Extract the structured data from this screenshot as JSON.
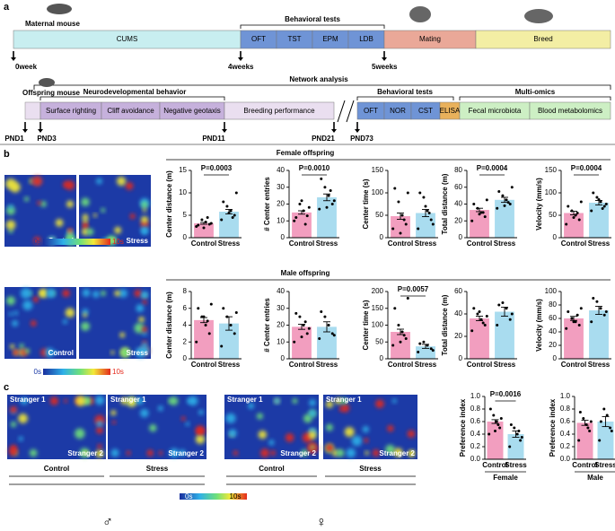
{
  "panel_labels": [
    "a",
    "b",
    "c"
  ],
  "panel_a": {
    "maternal_label": "Maternal mouse",
    "behavioral_tests": "Behavioral tests",
    "timeline": [
      "CUMS",
      "OFT",
      "TST",
      "EPM",
      "LDB",
      "Mating",
      "Breed"
    ],
    "time_points": [
      "0week",
      "4weeks",
      "5weeks"
    ],
    "network": "Network analysis",
    "offspring_label": "Offspring mouse",
    "neuro": "Neurodevelopmental behavior",
    "behavioral_tests_2": "Behavioral tests",
    "multi_omics": "Multi-omics",
    "offspring_timeline": [
      "Surface righting",
      "Cliff avoidance",
      "Negative geotaxis",
      "Breeding performance",
      "OFT",
      "NOR",
      "CST",
      "ELISA",
      "Fecal microbiota",
      "Blood metabolomics"
    ],
    "pnd": [
      "PND1",
      "PND3",
      "PND11",
      "PND21",
      "PND73"
    ]
  },
  "panel_b": {
    "female": "Female offspring",
    "male": "Male offspring",
    "heatmap_labels": [
      "Control",
      "Stress"
    ],
    "scale": [
      "0s",
      "10s"
    ]
  },
  "panel_c": {
    "strangers": [
      "Stranger 1",
      "Stranger 2"
    ],
    "groups": [
      "Control",
      "Stress"
    ],
    "sex": [
      "♂",
      "♀"
    ]
  },
  "chart_data": [
    {
      "type": "bar",
      "ylabel": "Center distance (m)",
      "categories": [
        "Control",
        "Stress"
      ],
      "colors": [
        "#f29ebf",
        "#a9dcef"
      ],
      "values": [
        3.2,
        5.8
      ],
      "errors": [
        0.2,
        0.5
      ],
      "points": [
        [
          2.5,
          3,
          3.5,
          4,
          2.8,
          3.2,
          4.5,
          2.2
        ],
        [
          4,
          5,
          6,
          7,
          8,
          10,
          4.5,
          5.5
        ]
      ],
      "ylim": [
        0,
        15
      ],
      "yticks": [
        0,
        5,
        10,
        15
      ],
      "annotation": "P=0.0003"
    },
    {
      "type": "bar",
      "ylabel": "# Center entries",
      "categories": [
        "Control",
        "Stress"
      ],
      "colors": [
        "#f29ebf",
        "#a9dcef"
      ],
      "values": [
        15,
        24
      ],
      "errors": [
        1,
        2
      ],
      "points": [
        [
          10,
          13,
          16,
          20,
          12,
          18,
          8,
          22
        ],
        [
          17,
          20,
          25,
          30,
          35,
          22,
          28,
          18
        ]
      ],
      "ylim": [
        0,
        40
      ],
      "yticks": [
        0,
        10,
        20,
        30,
        40
      ],
      "annotation": "P=0.0010"
    },
    {
      "type": "bar",
      "ylabel": "Center time (s)",
      "categories": [
        "Control",
        "Stress"
      ],
      "colors": [
        "#f29ebf",
        "#a9dcef"
      ],
      "values": [
        48,
        55
      ],
      "errors": [
        7,
        8
      ],
      "points": [
        [
          20,
          30,
          50,
          80,
          110,
          100,
          40,
          10
        ],
        [
          20,
          40,
          60,
          90,
          100,
          30,
          55,
          70
        ]
      ],
      "ylim": [
        0,
        150
      ],
      "yticks": [
        0,
        50,
        100,
        150
      ]
    },
    {
      "type": "bar",
      "ylabel": "Total distance (m)",
      "categories": [
        "Control",
        "Stress"
      ],
      "colors": [
        "#f29ebf",
        "#a9dcef"
      ],
      "values": [
        33,
        45
      ],
      "errors": [
        2,
        3
      ],
      "points": [
        [
          20,
          25,
          30,
          35,
          40,
          45,
          30,
          28
        ],
        [
          35,
          40,
          45,
          50,
          55,
          60,
          42,
          38
        ]
      ],
      "ylim": [
        0,
        80
      ],
      "yticks": [
        0,
        20,
        40,
        60,
        80
      ],
      "annotation": "P=0.0004"
    },
    {
      "type": "bar",
      "ylabel": "Velocity (mm/s)",
      "categories": [
        "Control",
        "Stress"
      ],
      "colors": [
        "#f29ebf",
        "#a9dcef"
      ],
      "values": [
        55,
        78
      ],
      "errors": [
        4,
        5
      ],
      "points": [
        [
          30,
          40,
          50,
          60,
          70,
          80,
          55,
          45
        ],
        [
          60,
          70,
          80,
          90,
          100,
          75,
          65,
          85
        ]
      ],
      "ylim": [
        0,
        150
      ],
      "yticks": [
        0,
        50,
        100,
        150
      ],
      "annotation": "P=0.0004"
    },
    {
      "type": "bar",
      "ylabel": "Center distance (m)",
      "categories": [
        "Control",
        "Stress"
      ],
      "colors": [
        "#f29ebf",
        "#a9dcef"
      ],
      "values": [
        4.6,
        4.2
      ],
      "errors": [
        0.3,
        0.8
      ],
      "points": [
        [
          2,
          3,
          4,
          5,
          6,
          6.5,
          4.5,
          5
        ],
        [
          1.5,
          3,
          4,
          5,
          6,
          5.5
        ]
      ],
      "ylim": [
        0,
        8
      ],
      "yticks": [
        0,
        2,
        4,
        6,
        8
      ]
    },
    {
      "type": "bar",
      "ylabel": "# Center entries",
      "categories": [
        "Control",
        "Stress"
      ],
      "colors": [
        "#f29ebf",
        "#a9dcef"
      ],
      "values": [
        19,
        19
      ],
      "errors": [
        1.5,
        3
      ],
      "points": [
        [
          10,
          15,
          20,
          25,
          27,
          18,
          22,
          13
        ],
        [
          12,
          15,
          20,
          25,
          28,
          14
        ]
      ],
      "ylim": [
        0,
        40
      ],
      "yticks": [
        0,
        10,
        20,
        30,
        40
      ]
    },
    {
      "type": "bar",
      "ylabel": "Center time (s)",
      "categories": [
        "Control",
        "Stress"
      ],
      "colors": [
        "#f29ebf",
        "#a9dcef"
      ],
      "values": [
        80,
        37
      ],
      "errors": [
        8,
        6
      ],
      "points": [
        [
          40,
          60,
          80,
          100,
          150,
          180,
          70,
          50
        ],
        [
          20,
          30,
          40,
          50,
          45,
          25
        ]
      ],
      "ylim": [
        0,
        200
      ],
      "yticks": [
        0,
        50,
        100,
        150,
        200
      ],
      "annotation": "P=0.0057"
    },
    {
      "type": "bar",
      "ylabel": "Total distance (m)",
      "categories": [
        "Control",
        "Stress"
      ],
      "colors": [
        "#f29ebf",
        "#a9dcef"
      ],
      "values": [
        36,
        42
      ],
      "errors": [
        2,
        4
      ],
      "points": [
        [
          25,
          30,
          35,
          40,
          45,
          38,
          32,
          42
        ],
        [
          30,
          35,
          45,
          50,
          48,
          40
        ]
      ],
      "ylim": [
        0,
        60
      ],
      "yticks": [
        0,
        20,
        40,
        60
      ]
    },
    {
      "type": "bar",
      "ylabel": "Velocity (mm/s)",
      "categories": [
        "Control",
        "Stress"
      ],
      "colors": [
        "#f29ebf",
        "#a9dcef"
      ],
      "values": [
        60,
        72
      ],
      "errors": [
        3,
        6
      ],
      "points": [
        [
          45,
          50,
          55,
          60,
          70,
          75,
          65,
          55
        ],
        [
          55,
          65,
          75,
          85,
          90,
          70
        ]
      ],
      "ylim": [
        0,
        100
      ],
      "yticks": [
        0,
        20,
        40,
        60,
        80,
        100
      ]
    },
    {
      "type": "bar",
      "ylabel": "Preference index",
      "categories": [
        "Control",
        "Stress"
      ],
      "colors": [
        "#f29ebf",
        "#a9dcef"
      ],
      "values": [
        0.6,
        0.4
      ],
      "errors": [
        0.03,
        0.05
      ],
      "points": [
        [
          0.4,
          0.5,
          0.6,
          0.7,
          0.8,
          0.65,
          0.55,
          0.45
        ],
        [
          0.2,
          0.3,
          0.4,
          0.5,
          0.55,
          0.35,
          0.45
        ]
      ],
      "ylim": [
        0,
        1
      ],
      "yticks": [
        {
          "value": 0,
          "label": "0.0"
        },
        0.2,
        0.4,
        0.6,
        0.8,
        {
          "value": 1,
          "label": "1.0"
        }
      ],
      "annotation": "P=0.0016",
      "group": "Female"
    },
    {
      "type": "bar",
      "ylabel": "Preference index",
      "categories": [
        "Control",
        "Stress"
      ],
      "colors": [
        "#f29ebf",
        "#a9dcef"
      ],
      "values": [
        0.58,
        0.6
      ],
      "errors": [
        0.04,
        0.08
      ],
      "points": [
        [
          0.3,
          0.45,
          0.55,
          0.65,
          0.75,
          0.6,
          0.5
        ],
        [
          0.3,
          0.5,
          0.7,
          0.8,
          0.6,
          0.45
        ]
      ],
      "ylim": [
        0,
        1
      ],
      "yticks": [
        {
          "value": 0,
          "label": "0.0"
        },
        0.2,
        0.4,
        0.6,
        0.8,
        {
          "value": 1,
          "label": "1.0"
        }
      ],
      "group": "Male"
    }
  ]
}
